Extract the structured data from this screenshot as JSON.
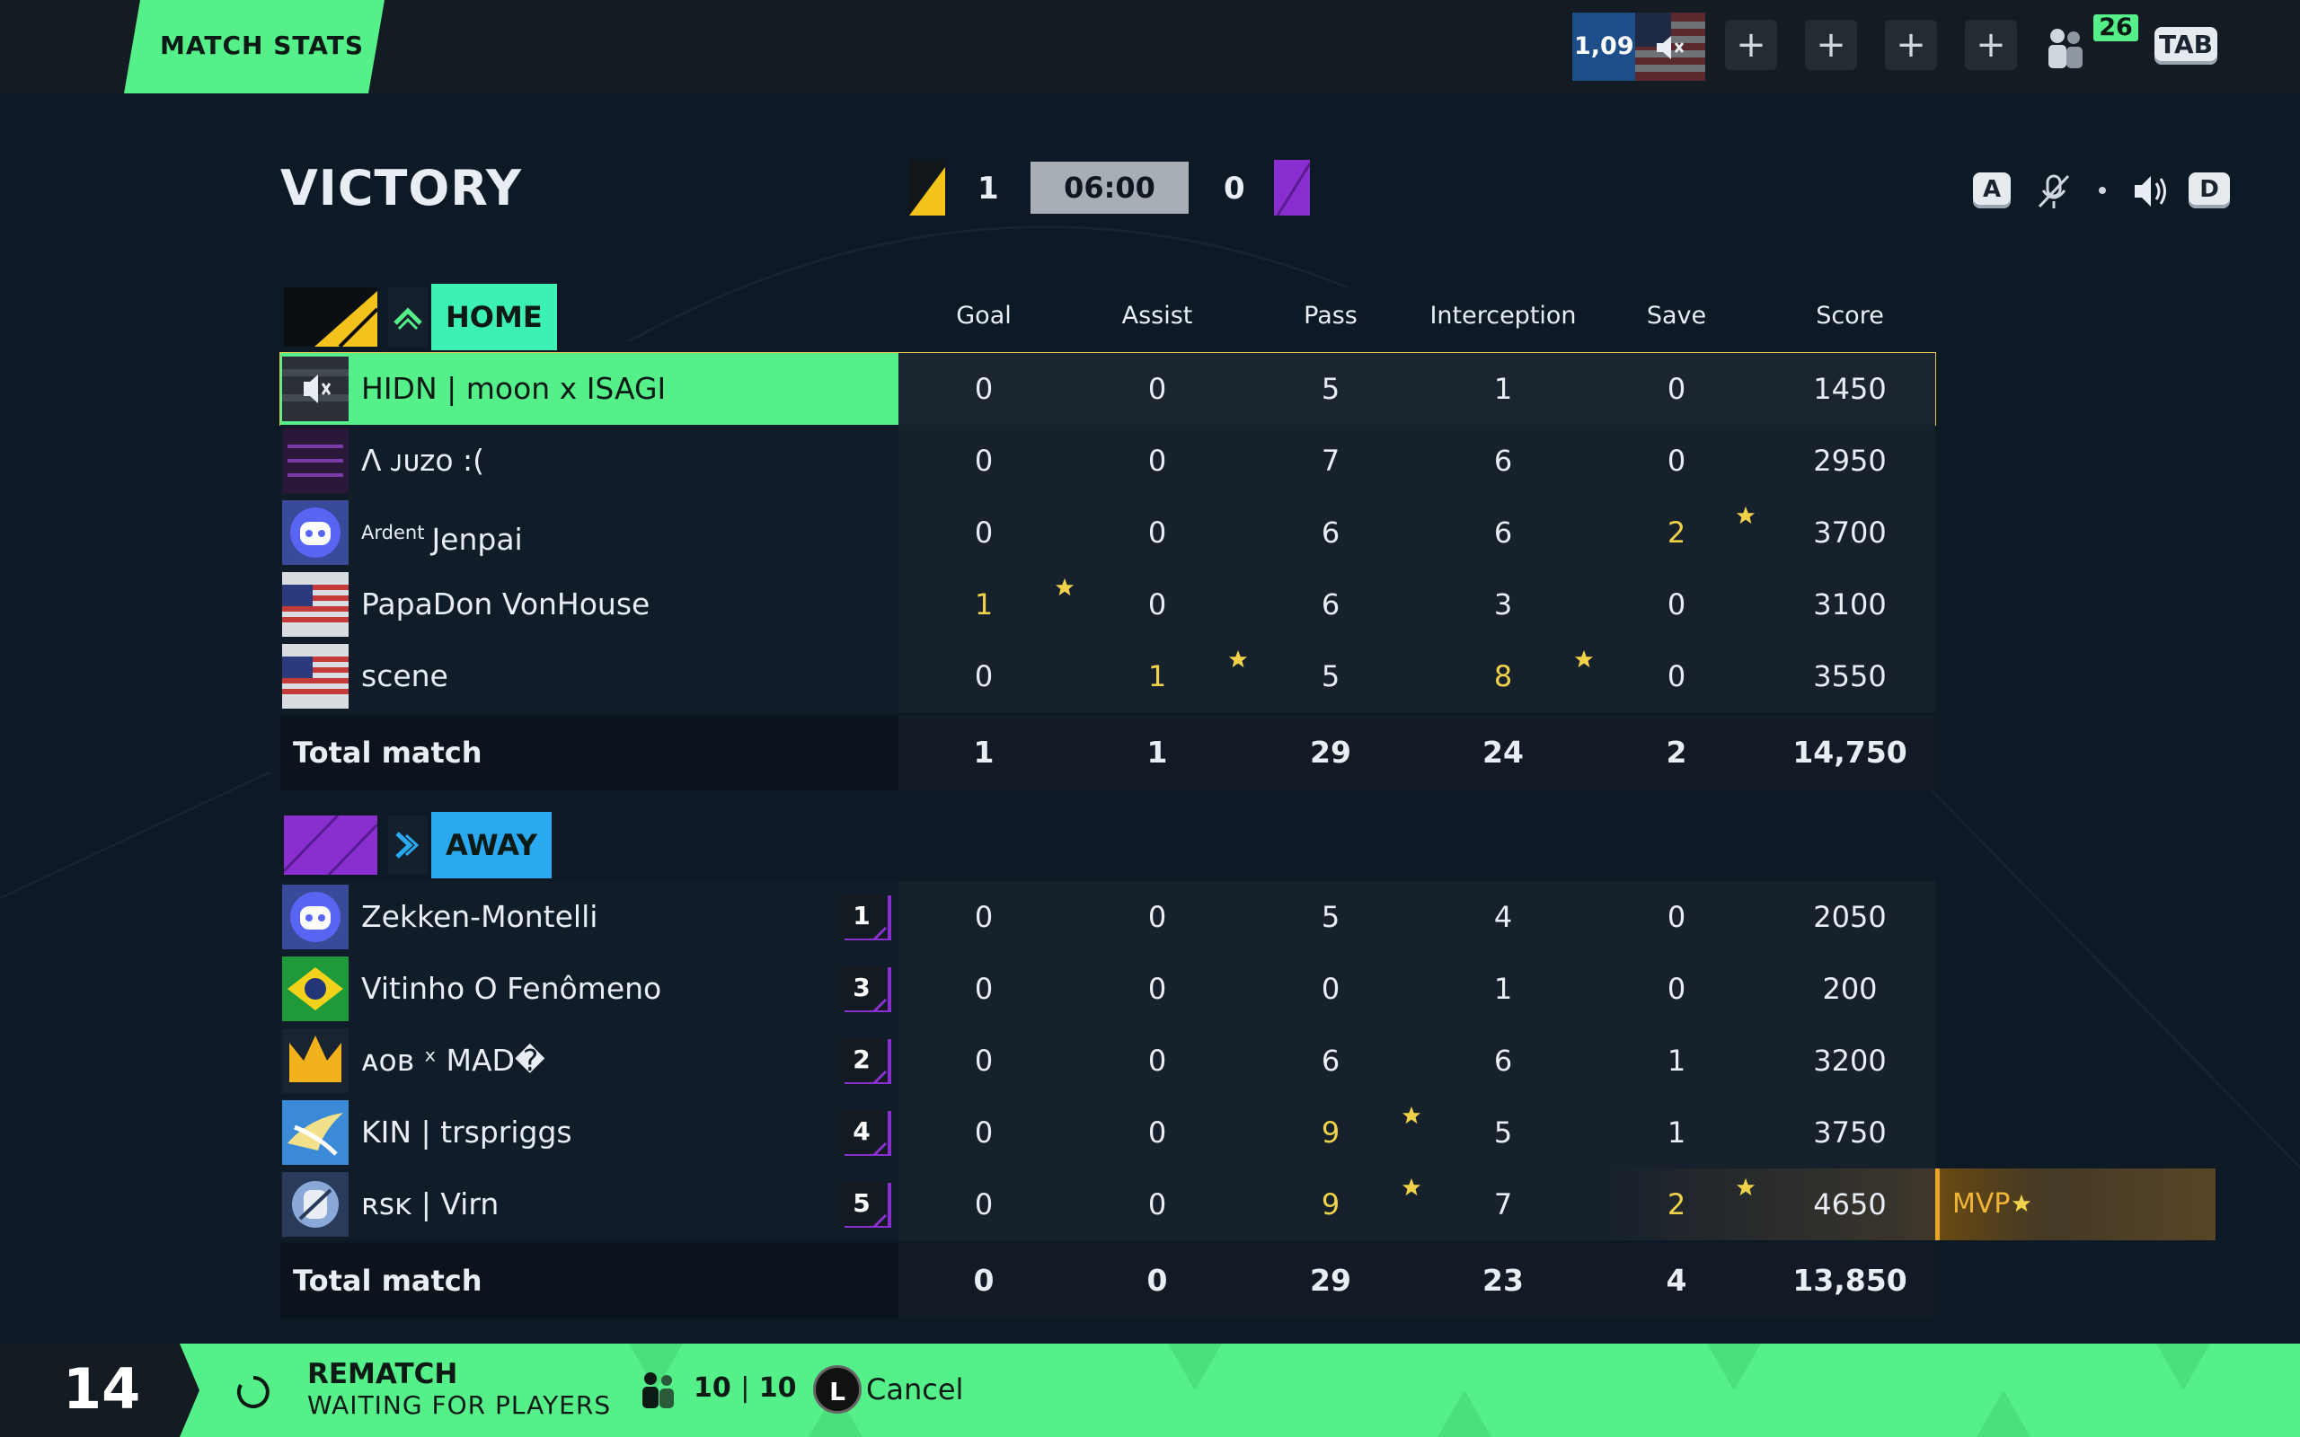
{
  "topbar": {
    "tab_label": "MATCH STATS",
    "currency": "1,099",
    "party_count": "26",
    "tab_key": "TAB"
  },
  "header": {
    "result": "VICTORY",
    "home_score": "1",
    "away_score": "0",
    "clock": "06:00",
    "audio_left_key": "A",
    "audio_right_key": "D"
  },
  "columns": [
    "Goal",
    "Assist",
    "Pass",
    "Interception",
    "Save",
    "Score"
  ],
  "home": {
    "tag": "HOME",
    "color": "#55f08a",
    "players": [
      {
        "prefix": "",
        "name": "HIDN | moon x ISAGI",
        "stats": [
          "0",
          "0",
          "5",
          "1",
          "0",
          "1450"
        ]
      },
      {
        "prefix": "",
        "name": "Λ ᴊᴜᴢᴏ :(",
        "stats": [
          "0",
          "0",
          "7",
          "6",
          "0",
          "2950"
        ]
      },
      {
        "prefix": "Ardent",
        "name": "Jenpai",
        "stats": [
          "0",
          "0",
          "6",
          "6",
          "2",
          "3700"
        ]
      },
      {
        "prefix": "",
        "name": "PapaDon VonHouse",
        "stats": [
          "1",
          "0",
          "6",
          "3",
          "0",
          "3100"
        ]
      },
      {
        "prefix": "",
        "name": "scene",
        "stats": [
          "0",
          "1",
          "5",
          "8",
          "0",
          "3550"
        ]
      }
    ],
    "total_label": "Total match",
    "totals": [
      "1",
      "1",
      "29",
      "24",
      "2",
      "14,750"
    ]
  },
  "away": {
    "tag": "AWAY",
    "color": "#2aa8f0",
    "players": [
      {
        "rank": "1",
        "name": "Zekken-Montelli",
        "stats": [
          "0",
          "0",
          "5",
          "4",
          "0",
          "2050"
        ]
      },
      {
        "rank": "3",
        "name": "Vitinho O Fenômeno",
        "stats": [
          "0",
          "0",
          "0",
          "1",
          "0",
          "200"
        ]
      },
      {
        "rank": "2",
        "name": "ᴀᴏʙ ˣ MAD�",
        "stats": [
          "0",
          "0",
          "6",
          "6",
          "1",
          "3200"
        ]
      },
      {
        "rank": "4",
        "name": "KIN | trspriggs",
        "stats": [
          "0",
          "0",
          "9",
          "5",
          "1",
          "3750"
        ]
      },
      {
        "rank": "5",
        "name": "ʀsᴋ | Virn",
        "stats": [
          "0",
          "0",
          "9",
          "7",
          "2",
          "4650"
        ]
      }
    ],
    "total_label": "Total match",
    "totals": [
      "0",
      "0",
      "29",
      "23",
      "4",
      "13,850"
    ],
    "mvp_label": "MVP"
  },
  "bottom": {
    "countdown": "14",
    "rematch_title": "REMATCH",
    "rematch_status": "WAITING FOR PLAYERS",
    "players_ready": "10",
    "players_total": "10",
    "cancel_key": "L",
    "cancel_label": "Cancel"
  }
}
